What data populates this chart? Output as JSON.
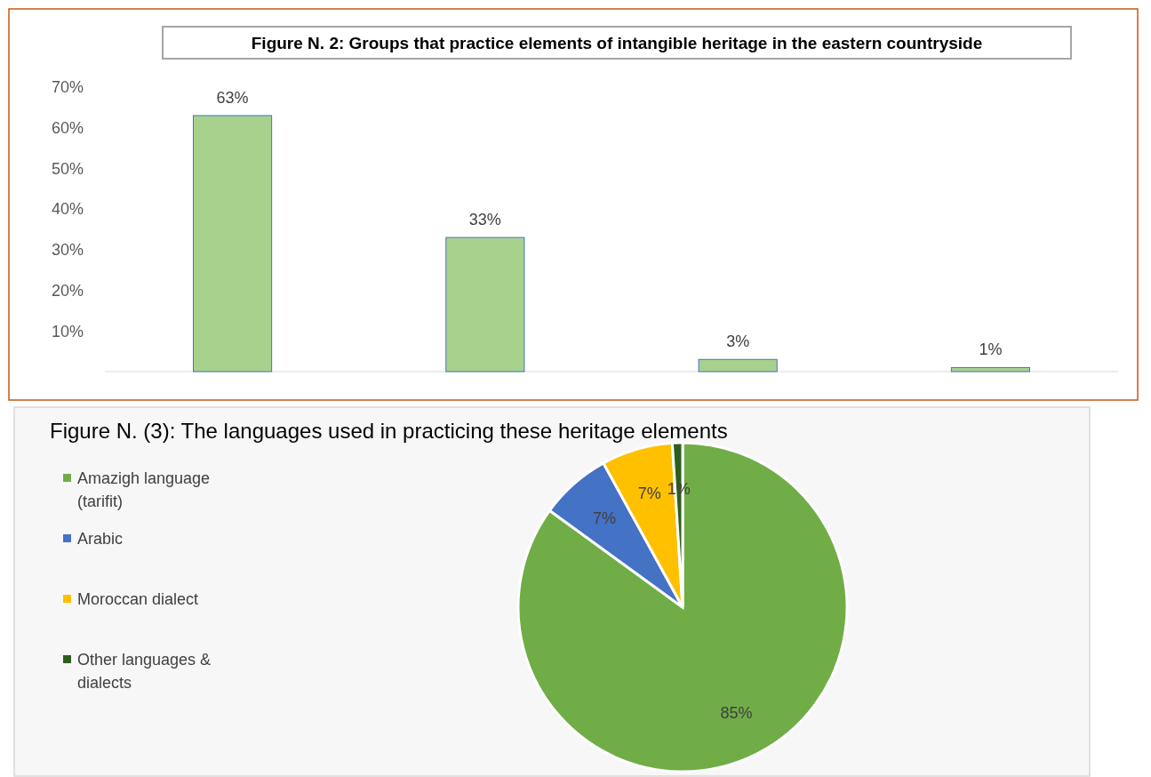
{
  "chart_data": [
    {
      "type": "bar",
      "title": "Figure N. 2: Groups that practice elements of intangible heritage in the eastern countryside",
      "categories": [
        null,
        null,
        null,
        null
      ],
      "series": [
        {
          "color": "#a9d18e",
          "values": [
            63,
            33,
            3,
            1
          ]
        }
      ],
      "ylim": [
        0,
        70
      ],
      "yticks": [
        {
          "value": 10,
          "label": "10%"
        },
        {
          "value": 20,
          "label": "20%"
        },
        {
          "value": 30,
          "label": "30%"
        },
        {
          "value": 40,
          "label": "40%"
        },
        {
          "value": 50,
          "label": "50%"
        },
        {
          "value": 60,
          "label": "60%"
        },
        {
          "value": 70,
          "label": "70%"
        }
      ],
      "value_labels": [
        "63%",
        "33%",
        "3%",
        "1%"
      ]
    },
    {
      "type": "pie",
      "title": "Figure N. (3): The languages used in practicing these heritage elements",
      "categories": [
        "Amazigh language (tarifit)",
        "Arabic",
        "Moroccan dialect",
        "Other languages & dialects"
      ],
      "values": [
        85,
        7,
        7,
        1
      ],
      "colors": [
        "#70ad47",
        "#4472c4",
        "#ffc000",
        "#2e5e1f"
      ],
      "value_labels": [
        "85%",
        "7%",
        "7%",
        "1%"
      ],
      "legend": "left"
    }
  ]
}
